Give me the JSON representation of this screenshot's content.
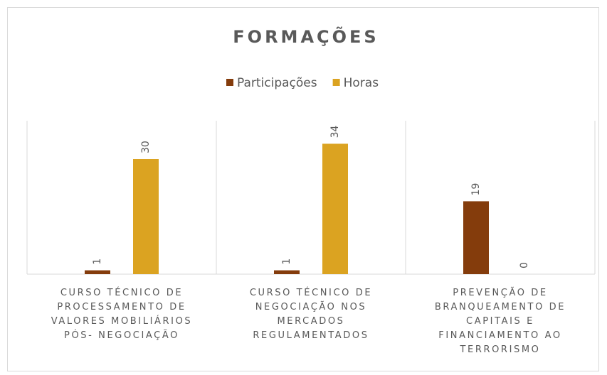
{
  "chart_data": {
    "type": "bar",
    "title": "FORMAÇÕES",
    "categories": [
      "CURSO TÉCNICO DE PROCESSAMENTO DE VALORES MOBILIÁRIOS PÓS- NEGOCIAÇÃO",
      "CURSO TÉCNICO DE NEGOCIAÇÃO NOS MERCADOS REGULAMENTADOS",
      "PREVENÇÃO DE BRANQUEAMENTO DE CAPITAIS E FINANCIAMENTO AO TERRORISMO"
    ],
    "series": [
      {
        "name": "Participações",
        "color": "#843c0c",
        "values": [
          1,
          1,
          19
        ]
      },
      {
        "name": "Horas",
        "color": "#dba321",
        "values": [
          30,
          34,
          0
        ]
      }
    ],
    "ylim": [
      0,
      40
    ],
    "legend": "top"
  }
}
